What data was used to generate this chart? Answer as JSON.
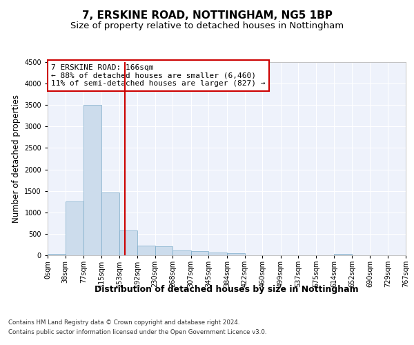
{
  "title": "7, ERSKINE ROAD, NOTTINGHAM, NG5 1BP",
  "subtitle": "Size of property relative to detached houses in Nottingham",
  "xlabel": "Distribution of detached houses by size in Nottingham",
  "ylabel": "Number of detached properties",
  "bar_color": "#ccdcec",
  "bar_edge_color": "#7aaac8",
  "background_color": "#ffffff",
  "plot_bg_color": "#eef2fb",
  "grid_color": "#ffffff",
  "vline_color": "#cc0000",
  "vline_x": 166,
  "bin_edges": [
    0,
    38,
    77,
    115,
    153,
    192,
    230,
    268,
    307,
    345,
    384,
    422,
    460,
    499,
    537,
    575,
    614,
    652,
    690,
    729,
    767
  ],
  "bin_counts": [
    30,
    1250,
    3500,
    1470,
    580,
    230,
    215,
    120,
    90,
    60,
    45,
    5,
    0,
    0,
    0,
    0,
    40,
    0,
    0,
    0
  ],
  "ylim": [
    0,
    4500
  ],
  "yticks": [
    0,
    500,
    1000,
    1500,
    2000,
    2500,
    3000,
    3500,
    4000,
    4500
  ],
  "annotation_text": "7 ERSKINE ROAD: 166sqm\n← 88% of detached houses are smaller (6,460)\n11% of semi-detached houses are larger (827) →",
  "annotation_box_color": "#ffffff",
  "annotation_box_edge_color": "#cc0000",
  "footer_line1": "Contains HM Land Registry data © Crown copyright and database right 2024.",
  "footer_line2": "Contains public sector information licensed under the Open Government Licence v3.0.",
  "title_fontsize": 11,
  "subtitle_fontsize": 9.5,
  "tick_fontsize": 7,
  "ylabel_fontsize": 8.5,
  "xlabel_fontsize": 9,
  "annotation_fontsize": 8
}
